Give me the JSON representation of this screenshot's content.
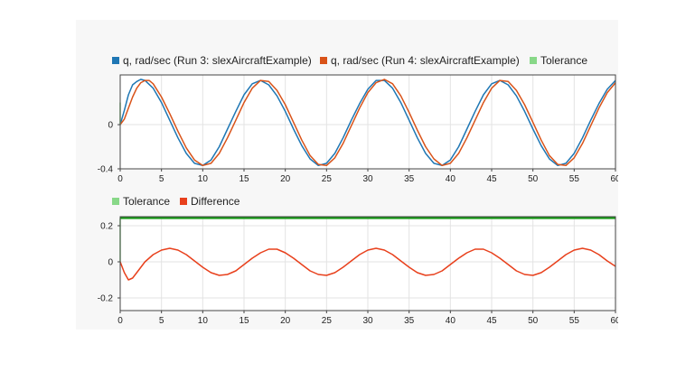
{
  "chart_data": [
    {
      "type": "line",
      "title": "",
      "xlabel": "",
      "ylabel": "",
      "xlim": [
        0,
        60
      ],
      "ylim": [
        -0.4,
        0.45
      ],
      "x_ticks": [
        0,
        5,
        10,
        15,
        20,
        25,
        30,
        35,
        40,
        45,
        50,
        55,
        60
      ],
      "y_ticks": [
        {
          "value": 0,
          "label": "0"
        },
        {
          "value": -0.4,
          "label": "-0.4"
        }
      ],
      "grid": true,
      "legend_position": "top-left",
      "legend": [
        {
          "label": "q, rad/sec (Run 3: slexAircraftExample)",
          "color": "#1f77b4"
        },
        {
          "label": "q, rad/sec (Run 4: slexAircraftExample)",
          "color": "#d95319"
        },
        {
          "label": "Tolerance",
          "color": "#88d888"
        }
      ],
      "series": [
        {
          "color": "#1f77b4",
          "x": [
            0,
            0.5,
            1,
            1.5,
            2,
            2.5,
            3,
            4,
            5,
            6,
            7,
            8,
            9,
            10,
            11,
            12,
            13,
            14,
            15,
            16,
            17,
            18,
            19,
            20,
            21,
            22,
            23,
            24,
            25,
            26,
            27,
            28,
            29,
            30,
            31,
            32,
            33,
            34,
            35,
            36,
            37,
            38,
            39,
            40,
            41,
            42,
            43,
            44,
            45,
            46,
            47,
            48,
            49,
            50,
            51,
            52,
            53,
            54,
            55,
            56,
            57,
            58,
            59,
            60
          ],
          "y": [
            0.0,
            0.13,
            0.27,
            0.36,
            0.39,
            0.41,
            0.4,
            0.33,
            0.2,
            0.04,
            -0.12,
            -0.26,
            -0.35,
            -0.37,
            -0.32,
            -0.2,
            -0.04,
            0.12,
            0.27,
            0.37,
            0.4,
            0.36,
            0.26,
            0.12,
            -0.04,
            -0.19,
            -0.31,
            -0.37,
            -0.35,
            -0.26,
            -0.12,
            0.04,
            0.19,
            0.32,
            0.4,
            0.4,
            0.33,
            0.2,
            0.04,
            -0.12,
            -0.26,
            -0.35,
            -0.37,
            -0.32,
            -0.2,
            -0.04,
            0.12,
            0.27,
            0.37,
            0.4,
            0.36,
            0.26,
            0.12,
            -0.04,
            -0.19,
            -0.31,
            -0.37,
            -0.35,
            -0.26,
            -0.12,
            0.04,
            0.19,
            0.32,
            0.4
          ]
        },
        {
          "color": "#d95319",
          "x": [
            0,
            0.5,
            1,
            1.5,
            2,
            2.5,
            3,
            3.5,
            4,
            5,
            6,
            7,
            8,
            9,
            10,
            11,
            12,
            13,
            14,
            15,
            16,
            17,
            18,
            19,
            20,
            21,
            22,
            23,
            24,
            25,
            26,
            27,
            28,
            29,
            30,
            31,
            32,
            33,
            34,
            35,
            36,
            37,
            38,
            39,
            40,
            41,
            42,
            43,
            44,
            45,
            46,
            47,
            48,
            49,
            50,
            51,
            52,
            53,
            54,
            55,
            56,
            57,
            58,
            59,
            60
          ],
          "y": [
            0.0,
            0.05,
            0.15,
            0.25,
            0.33,
            0.38,
            0.4,
            0.4,
            0.37,
            0.25,
            0.1,
            -0.06,
            -0.21,
            -0.32,
            -0.37,
            -0.35,
            -0.26,
            -0.12,
            0.04,
            0.2,
            0.33,
            0.4,
            0.39,
            0.31,
            0.18,
            0.02,
            -0.14,
            -0.28,
            -0.36,
            -0.37,
            -0.3,
            -0.17,
            -0.01,
            0.15,
            0.29,
            0.38,
            0.41,
            0.37,
            0.26,
            0.11,
            -0.05,
            -0.2,
            -0.31,
            -0.37,
            -0.35,
            -0.26,
            -0.12,
            0.04,
            0.2,
            0.33,
            0.4,
            0.39,
            0.31,
            0.18,
            0.02,
            -0.14,
            -0.28,
            -0.36,
            -0.37,
            -0.3,
            -0.17,
            -0.01,
            0.15,
            0.29,
            0.38
          ]
        },
        {
          "color": "#88d888",
          "x": [
            0,
            0
          ],
          "y": [
            0.0,
            0.2
          ]
        }
      ]
    },
    {
      "type": "line",
      "title": "",
      "xlabel": "",
      "ylabel": "",
      "xlim": [
        0,
        60
      ],
      "ylim": [
        -0.27,
        0.25
      ],
      "x_ticks": [
        0,
        5,
        10,
        15,
        20,
        25,
        30,
        35,
        40,
        45,
        50,
        55,
        60
      ],
      "y_ticks": [
        {
          "value": 0.2,
          "label": "0.2"
        },
        {
          "value": 0,
          "label": "0"
        },
        {
          "value": -0.2,
          "label": "-0.2"
        }
      ],
      "grid": true,
      "legend_position": "top-left",
      "legend": [
        {
          "label": "Tolerance",
          "color": "#88d888"
        },
        {
          "label": "Difference",
          "color": "#e8401c"
        }
      ],
      "series": [
        {
          "color": "#88d888",
          "x": [
            0,
            0,
            60
          ],
          "y": [
            0.0,
            0.24,
            0.24
          ]
        },
        {
          "color": "#1a9a1a",
          "x": [
            0,
            60
          ],
          "y": [
            0.245,
            0.245
          ]
        },
        {
          "color": "#e8401c",
          "x": [
            0,
            0.5,
            1,
            1.5,
            2,
            3,
            4,
            5,
            6,
            7,
            8,
            9,
            10,
            11,
            12,
            13,
            14,
            15,
            16,
            17,
            18,
            19,
            20,
            21,
            22,
            23,
            24,
            25,
            26,
            27,
            28,
            29,
            30,
            31,
            32,
            33,
            34,
            35,
            36,
            37,
            38,
            39,
            40,
            41,
            42,
            43,
            44,
            45,
            46,
            47,
            48,
            49,
            50,
            51,
            52,
            53,
            54,
            55,
            56,
            57,
            58,
            59,
            60
          ],
          "y": [
            0.0,
            -0.06,
            -0.1,
            -0.09,
            -0.06,
            0.0,
            0.04,
            0.065,
            0.075,
            0.065,
            0.04,
            0.005,
            -0.03,
            -0.06,
            -0.075,
            -0.07,
            -0.05,
            -0.015,
            0.02,
            0.05,
            0.07,
            0.07,
            0.05,
            0.02,
            -0.015,
            -0.05,
            -0.07,
            -0.075,
            -0.06,
            -0.03,
            0.005,
            0.04,
            0.065,
            0.075,
            0.065,
            0.04,
            0.005,
            -0.03,
            -0.06,
            -0.075,
            -0.07,
            -0.05,
            -0.015,
            0.02,
            0.05,
            0.07,
            0.07,
            0.05,
            0.02,
            -0.015,
            -0.05,
            -0.07,
            -0.075,
            -0.06,
            -0.03,
            0.005,
            0.04,
            0.065,
            0.075,
            0.065,
            0.04,
            0.005,
            -0.025
          ]
        }
      ]
    }
  ]
}
